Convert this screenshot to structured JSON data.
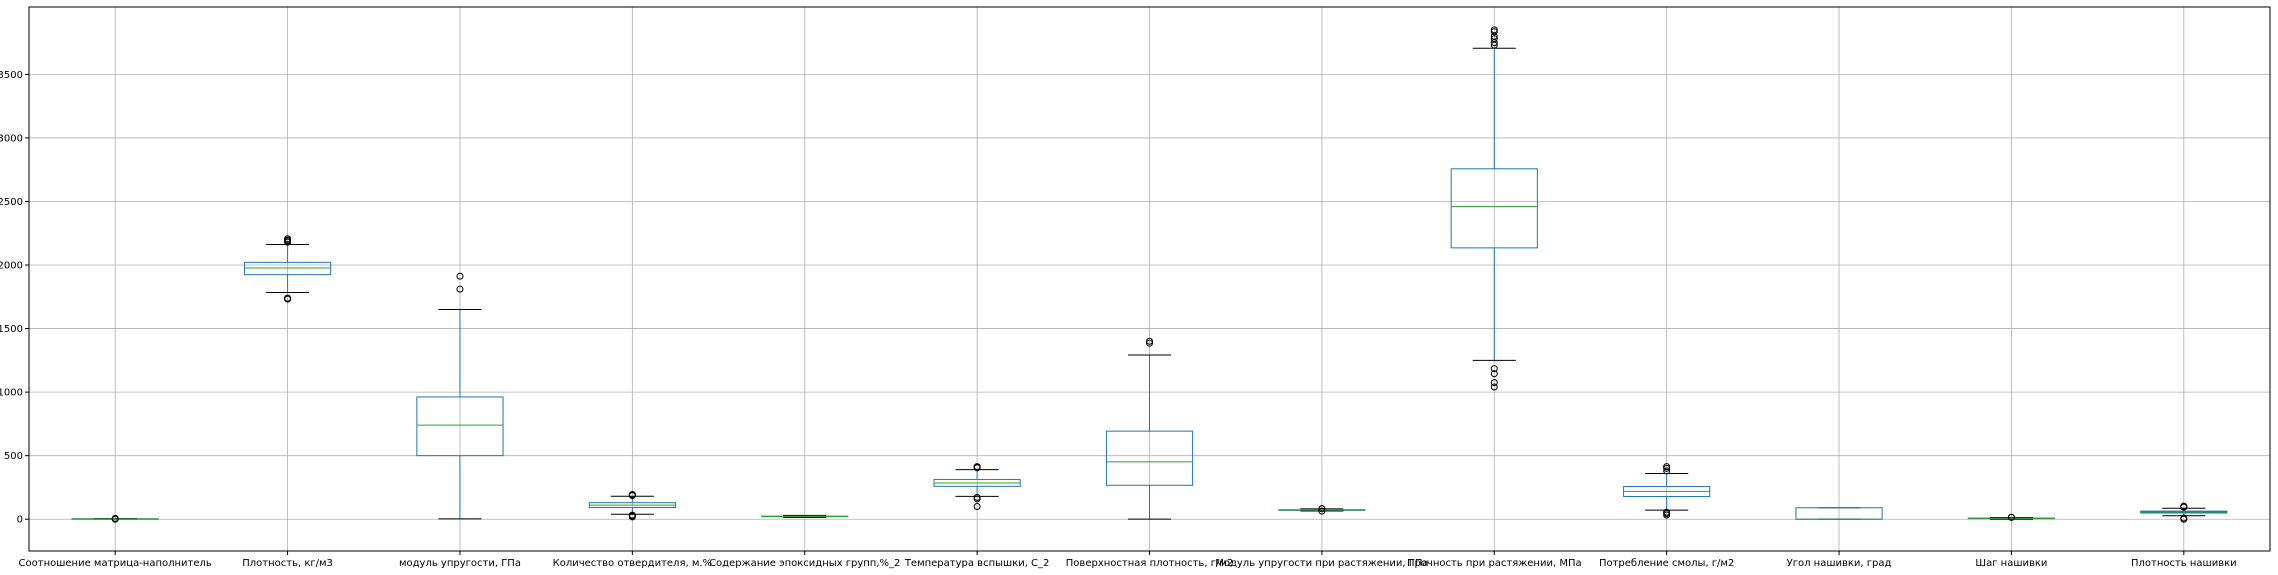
{
  "chart_data": {
    "type": "box",
    "title": "",
    "xlabel": "",
    "ylabel": "",
    "ylim": [
      -250,
      4030
    ],
    "yticks": [
      0,
      500,
      1000,
      1500,
      2000,
      2500,
      3000,
      3500
    ],
    "grid": true,
    "colors": {
      "box": "#1f77b4",
      "median": "#2ca02c",
      "whisker": "#000000",
      "grid": "#b0b0b0"
    },
    "categories": [
      "Соотношение матрица-наполнитель",
      "Плотность, кг/м3",
      "модуль упругости, ГПа",
      "Количество отвердителя, м.%",
      "Содержание эпоксидных групп,%_2",
      "Температура вспышки, С_2",
      "Поверхностная плотность, г/м2",
      "Модуль упругости при растяжении, ГПа",
      "Прочность при растяжении, МПа",
      "Потребление смолы, г/м2",
      "Угол нашивки, град",
      "Шаг нашивки",
      "Плотность нашивки"
    ],
    "boxes": [
      {
        "whislo": 0.4,
        "q1": 2.3,
        "med": 2.9,
        "q3": 3.5,
        "whishi": 5.3,
        "fliers": [
          0.1,
          5.5,
          5.6
        ]
      },
      {
        "whislo": 1784,
        "q1": 1924,
        "med": 1977,
        "q3": 2021,
        "whishi": 2161,
        "fliers": [
          1732,
          1740,
          2180,
          2190,
          2196,
          2207
        ]
      },
      {
        "whislo": 3,
        "q1": 500,
        "med": 740,
        "q3": 962,
        "whishi": 1650,
        "fliers": [
          1810,
          1912
        ]
      },
      {
        "whislo": 39,
        "q1": 92,
        "med": 111,
        "q3": 130,
        "whishi": 181,
        "fliers": [
          18,
          25,
          32,
          186,
          190,
          195
        ]
      },
      {
        "whislo": 14,
        "q1": 20,
        "med": 22,
        "q3": 24,
        "whishi": 30,
        "fliers": []
      },
      {
        "whislo": 180,
        "q1": 259,
        "med": 285,
        "q3": 313,
        "whishi": 390,
        "fliers": [
          100,
          160,
          172,
          405,
          410,
          414
        ]
      },
      {
        "whislo": 1,
        "q1": 267,
        "med": 451,
        "q3": 693,
        "whishi": 1292,
        "fliers": [
          1385,
          1400
        ]
      },
      {
        "whislo": 65,
        "q1": 70,
        "med": 73,
        "q3": 75,
        "whishi": 81,
        "fliers": [
          64,
          82,
          83
        ]
      },
      {
        "whislo": 1250,
        "q1": 2135,
        "med": 2459,
        "q3": 2757,
        "whishi": 3705,
        "fliers": [
          1040,
          1075,
          1145,
          1185,
          3730,
          3750,
          3780,
          3800,
          3835,
          3850
        ]
      },
      {
        "whislo": 72,
        "q1": 179,
        "med": 219,
        "q3": 257,
        "whishi": 360,
        "fliers": [
          33,
          45,
          55,
          380,
          400,
          414
        ]
      },
      {
        "whislo": 0,
        "q1": 0,
        "med": 0,
        "q3": 90,
        "whishi": 90,
        "fliers": []
      },
      {
        "whislo": 0,
        "q1": 5,
        "med": 7,
        "q3": 9,
        "whishi": 14,
        "fliers": [
          14.5,
          14.9
        ]
      },
      {
        "whislo": 27,
        "q1": 49,
        "med": 57,
        "q3": 64,
        "whishi": 86,
        "fliers": [
          0,
          10,
          95,
          100,
          103
        ]
      }
    ]
  }
}
